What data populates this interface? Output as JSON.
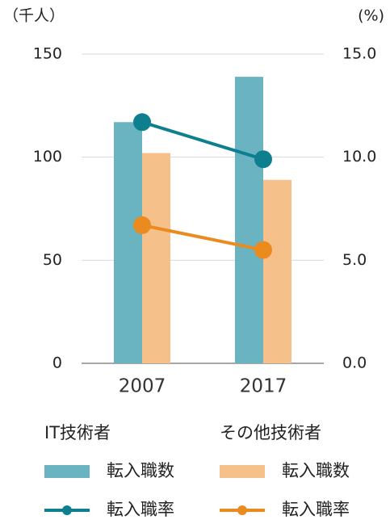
{
  "chart_data": {
    "type": "bar",
    "y_label": "（千人）",
    "y2_label": "(%)",
    "categories": [
      "2007",
      "2017"
    ],
    "series": [
      {
        "name": "転入職数",
        "type": "bar",
        "color": "#6ab4c2",
        "values": [
          117,
          139
        ]
      },
      {
        "name": "転入職数",
        "type": "bar",
        "color": "#f5c08a",
        "values": [
          102,
          89
        ]
      },
      {
        "name": "転入職率",
        "type": "line",
        "axis": "y2",
        "color": "#0e7f8f",
        "values": [
          11.7,
          9.9
        ]
      },
      {
        "name": "転入職率",
        "type": "line",
        "axis": "y2",
        "color": "#eb8a1e",
        "values": [
          6.7,
          5.5
        ]
      }
    ],
    "legend_groups": [
      "IT技術者",
      "その他技術者"
    ],
    "ylim": [
      0,
      150
    ],
    "yticks": [
      0,
      50,
      100,
      150
    ],
    "y2lim": [
      0,
      15
    ],
    "y2ticks": [
      {
        "value": 0,
        "label": "0.0"
      },
      {
        "value": 5,
        "label": "5.0"
      },
      {
        "value": 10,
        "label": "10.0"
      },
      {
        "value": 15,
        "label": "15.0"
      }
    ],
    "grid": true
  }
}
